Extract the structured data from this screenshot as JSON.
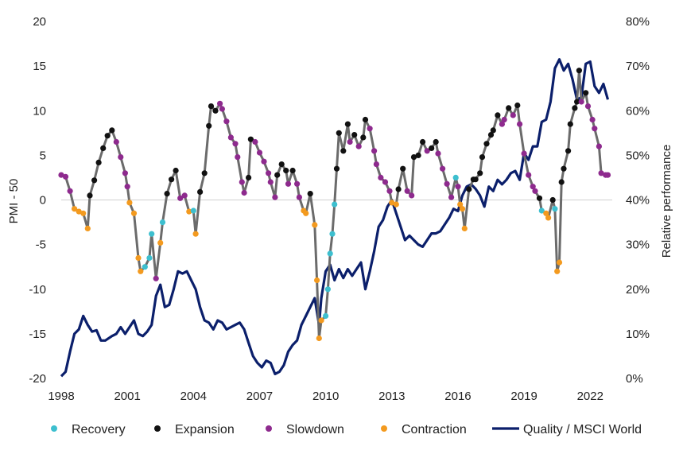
{
  "chart_data": {
    "type": "line",
    "title": "",
    "xlabel": "",
    "ylabel_left": "PMI - 50",
    "ylabel_right": "Relative performance",
    "ylim_left": [
      -20,
      20
    ],
    "ylim_right": [
      0,
      80
    ],
    "xlim": [
      1998,
      2023
    ],
    "x_ticks": [
      "1998",
      "2001",
      "2004",
      "2007",
      "2010",
      "2013",
      "2016",
      "2019",
      "2022"
    ],
    "y_left_ticks": [
      "20",
      "15",
      "10",
      "5",
      "0",
      "-5",
      "-10",
      "-15",
      "-20"
    ],
    "y_right_ticks": [
      "80%",
      "70%",
      "60%",
      "50%",
      "40%",
      "30%",
      "20%",
      "10%",
      "0%"
    ],
    "zero_line": true,
    "grid": false,
    "legend_position": "bottom",
    "colors": {
      "recovery": "#3dbfcf",
      "expansion": "#111111",
      "slowdown": "#8e2a8e",
      "contraction": "#f39a1f",
      "pmi_line": "#6b6b6b",
      "quality_line": "#0b1f6b",
      "zero_line": "#d0d0d0"
    },
    "legend": [
      {
        "key": "recovery",
        "label": "Recovery",
        "kind": "dot"
      },
      {
        "key": "expansion",
        "label": "Expansion",
        "kind": "dot"
      },
      {
        "key": "slowdown",
        "label": "Slowdown",
        "kind": "dot"
      },
      {
        "key": "contraction",
        "label": "Contraction",
        "kind": "dot"
      },
      {
        "key": "quality",
        "label": "Quality / MSCI World",
        "kind": "line"
      }
    ],
    "pmi_series": {
      "axis": "left",
      "points": [
        [
          1998.0,
          2.8,
          "S"
        ],
        [
          1998.2,
          2.6,
          "S"
        ],
        [
          1998.4,
          1.0,
          "S"
        ],
        [
          1998.6,
          -1.0,
          "C"
        ],
        [
          1998.8,
          -1.3,
          "C"
        ],
        [
          1999.0,
          -1.5,
          "C"
        ],
        [
          1999.2,
          -3.2,
          "C"
        ],
        [
          1999.3,
          0.5,
          "E"
        ],
        [
          1999.5,
          2.2,
          "E"
        ],
        [
          1999.7,
          4.2,
          "E"
        ],
        [
          1999.9,
          5.8,
          "E"
        ],
        [
          2000.1,
          7.2,
          "E"
        ],
        [
          2000.3,
          7.8,
          "E"
        ],
        [
          2000.5,
          6.5,
          "S"
        ],
        [
          2000.7,
          4.8,
          "S"
        ],
        [
          2000.9,
          3.0,
          "S"
        ],
        [
          2001.0,
          1.5,
          "S"
        ],
        [
          2001.1,
          -0.3,
          "C"
        ],
        [
          2001.3,
          -1.5,
          "C"
        ],
        [
          2001.5,
          -6.5,
          "C"
        ],
        [
          2001.6,
          -8.0,
          "C"
        ],
        [
          2001.8,
          -7.5,
          "R"
        ],
        [
          2002.0,
          -6.5,
          "R"
        ],
        [
          2002.1,
          -3.8,
          "R"
        ],
        [
          2002.3,
          -8.8,
          "S"
        ],
        [
          2002.5,
          -4.8,
          "C"
        ],
        [
          2002.6,
          -2.5,
          "R"
        ],
        [
          2002.8,
          0.7,
          "E"
        ],
        [
          2003.0,
          2.3,
          "E"
        ],
        [
          2003.2,
          3.3,
          "E"
        ],
        [
          2003.4,
          0.2,
          "S"
        ],
        [
          2003.6,
          0.5,
          "S"
        ],
        [
          2003.8,
          -1.3,
          "C"
        ],
        [
          2004.0,
          -1.2,
          "R"
        ],
        [
          2004.1,
          -3.8,
          "C"
        ],
        [
          2004.3,
          0.9,
          "E"
        ],
        [
          2004.5,
          3.0,
          "E"
        ],
        [
          2004.7,
          8.3,
          "E"
        ],
        [
          2004.8,
          10.5,
          "E"
        ],
        [
          2005.0,
          10.0,
          "E"
        ],
        [
          2005.2,
          10.8,
          "S"
        ],
        [
          2005.3,
          10.2,
          "S"
        ],
        [
          2005.5,
          8.8,
          "S"
        ],
        [
          2005.7,
          7.0,
          "S"
        ],
        [
          2005.9,
          6.3,
          "S"
        ],
        [
          2006.0,
          4.8,
          "S"
        ],
        [
          2006.2,
          2.0,
          "S"
        ],
        [
          2006.3,
          0.8,
          "S"
        ],
        [
          2006.5,
          2.5,
          "E"
        ],
        [
          2006.6,
          6.8,
          "E"
        ],
        [
          2006.8,
          6.5,
          "S"
        ],
        [
          2007.0,
          5.3,
          "S"
        ],
        [
          2007.2,
          4.3,
          "S"
        ],
        [
          2007.4,
          3.0,
          "S"
        ],
        [
          2007.5,
          2.0,
          "S"
        ],
        [
          2007.7,
          0.3,
          "S"
        ],
        [
          2007.8,
          2.8,
          "E"
        ],
        [
          2008.0,
          4.0,
          "E"
        ],
        [
          2008.2,
          3.3,
          "E"
        ],
        [
          2008.3,
          1.8,
          "S"
        ],
        [
          2008.5,
          3.3,
          "E"
        ],
        [
          2008.7,
          1.8,
          "S"
        ],
        [
          2008.8,
          0.3,
          "S"
        ],
        [
          2009.0,
          -1.2,
          "C"
        ],
        [
          2009.1,
          -1.5,
          "C"
        ],
        [
          2009.3,
          0.7,
          "E"
        ],
        [
          2009.5,
          -2.8,
          "C"
        ],
        [
          2009.6,
          -9.0,
          "C"
        ],
        [
          2009.7,
          -15.5,
          "C"
        ],
        [
          2009.8,
          -13.5,
          "C"
        ],
        [
          2010.0,
          -13.0,
          "R"
        ],
        [
          2010.1,
          -10.0,
          "R"
        ],
        [
          2010.2,
          -6.0,
          "R"
        ],
        [
          2010.3,
          -3.8,
          "R"
        ],
        [
          2010.4,
          -0.5,
          "R"
        ],
        [
          2010.5,
          3.5,
          "E"
        ],
        [
          2010.6,
          7.5,
          "E"
        ],
        [
          2010.8,
          5.5,
          "E"
        ],
        [
          2011.0,
          8.5,
          "E"
        ],
        [
          2011.1,
          6.5,
          "S"
        ],
        [
          2011.3,
          7.3,
          "E"
        ],
        [
          2011.5,
          6.0,
          "S"
        ],
        [
          2011.7,
          7.0,
          "E"
        ],
        [
          2011.8,
          9.0,
          "E"
        ],
        [
          2012.0,
          8.0,
          "S"
        ],
        [
          2012.2,
          5.5,
          "S"
        ],
        [
          2012.3,
          4.0,
          "S"
        ],
        [
          2012.5,
          2.5,
          "S"
        ],
        [
          2012.7,
          2.0,
          "S"
        ],
        [
          2012.9,
          1.0,
          "S"
        ],
        [
          2013.0,
          -0.3,
          "C"
        ],
        [
          2013.2,
          -0.5,
          "C"
        ],
        [
          2013.3,
          1.2,
          "E"
        ],
        [
          2013.5,
          3.5,
          "E"
        ],
        [
          2013.7,
          1.0,
          "S"
        ],
        [
          2013.9,
          0.5,
          "S"
        ],
        [
          2014.0,
          4.8,
          "E"
        ],
        [
          2014.2,
          5.0,
          "E"
        ],
        [
          2014.4,
          6.5,
          "E"
        ],
        [
          2014.6,
          5.5,
          "S"
        ],
        [
          2014.8,
          5.8,
          "E"
        ],
        [
          2015.0,
          6.5,
          "E"
        ],
        [
          2015.1,
          5.2,
          "S"
        ],
        [
          2015.3,
          3.5,
          "S"
        ],
        [
          2015.5,
          1.8,
          "S"
        ],
        [
          2015.7,
          0.3,
          "S"
        ],
        [
          2015.9,
          2.5,
          "R"
        ],
        [
          2016.0,
          1.5,
          "S"
        ],
        [
          2016.1,
          -0.5,
          "C"
        ],
        [
          2016.2,
          -1.0,
          "C"
        ],
        [
          2016.3,
          -3.2,
          "C"
        ],
        [
          2016.5,
          1.2,
          "E"
        ],
        [
          2016.7,
          2.3,
          "E"
        ],
        [
          2016.8,
          2.3,
          "E"
        ],
        [
          2017.0,
          3.0,
          "E"
        ],
        [
          2017.1,
          4.8,
          "E"
        ],
        [
          2017.3,
          6.3,
          "E"
        ],
        [
          2017.5,
          7.3,
          "E"
        ],
        [
          2017.6,
          7.8,
          "E"
        ],
        [
          2017.8,
          9.5,
          "E"
        ],
        [
          2018.0,
          8.5,
          "S"
        ],
        [
          2018.1,
          9.0,
          "S"
        ],
        [
          2018.3,
          10.3,
          "E"
        ],
        [
          2018.5,
          9.5,
          "S"
        ],
        [
          2018.7,
          10.6,
          "E"
        ],
        [
          2018.8,
          8.5,
          "S"
        ],
        [
          2019.0,
          5.2,
          "S"
        ],
        [
          2019.2,
          2.8,
          "S"
        ],
        [
          2019.4,
          1.5,
          "S"
        ],
        [
          2019.5,
          1.0,
          "S"
        ],
        [
          2019.7,
          0.2,
          "E"
        ],
        [
          2019.8,
          -1.2,
          "R"
        ],
        [
          2020.0,
          -1.5,
          "C"
        ],
        [
          2020.1,
          -2.0,
          "C"
        ],
        [
          2020.3,
          0.0,
          "E"
        ],
        [
          2020.4,
          -1.0,
          "R"
        ],
        [
          2020.5,
          -8.0,
          "C"
        ],
        [
          2020.6,
          -7.0,
          "C"
        ],
        [
          2020.7,
          2.0,
          "E"
        ],
        [
          2020.8,
          3.5,
          "E"
        ],
        [
          2021.0,
          5.5,
          "E"
        ],
        [
          2021.1,
          8.5,
          "E"
        ],
        [
          2021.3,
          10.3,
          "E"
        ],
        [
          2021.4,
          11.0,
          "E"
        ],
        [
          2021.5,
          14.5,
          "E"
        ],
        [
          2021.6,
          11.0,
          "S"
        ],
        [
          2021.8,
          12.0,
          "E"
        ],
        [
          2021.9,
          10.5,
          "S"
        ],
        [
          2022.1,
          9.0,
          "S"
        ],
        [
          2022.2,
          8.0,
          "S"
        ],
        [
          2022.4,
          6.0,
          "S"
        ],
        [
          2022.5,
          3.0,
          "S"
        ],
        [
          2022.7,
          2.8,
          "S"
        ],
        [
          2022.8,
          2.8,
          "S"
        ]
      ]
    },
    "quality_series": {
      "name": "Quality / MSCI World",
      "axis": "right",
      "points": [
        [
          1998.0,
          0.5
        ],
        [
          1998.2,
          1.5
        ],
        [
          1998.4,
          6.0
        ],
        [
          1998.6,
          10.0
        ],
        [
          1998.8,
          11.0
        ],
        [
          1999.0,
          14.0
        ],
        [
          1999.2,
          12.0
        ],
        [
          1999.4,
          10.5
        ],
        [
          1999.6,
          10.8
        ],
        [
          1999.8,
          8.5
        ],
        [
          2000.0,
          8.5
        ],
        [
          2000.3,
          9.5
        ],
        [
          2000.5,
          10.0
        ],
        [
          2000.7,
          11.5
        ],
        [
          2000.9,
          10.0
        ],
        [
          2001.1,
          11.5
        ],
        [
          2001.3,
          13.0
        ],
        [
          2001.5,
          10.0
        ],
        [
          2001.7,
          9.5
        ],
        [
          2001.9,
          10.5
        ],
        [
          2002.1,
          12.0
        ],
        [
          2002.3,
          18.5
        ],
        [
          2002.5,
          21.0
        ],
        [
          2002.7,
          16.0
        ],
        [
          2002.9,
          16.5
        ],
        [
          2003.1,
          20.0
        ],
        [
          2003.3,
          24.0
        ],
        [
          2003.5,
          23.5
        ],
        [
          2003.7,
          24.0
        ],
        [
          2003.9,
          22.0
        ],
        [
          2004.1,
          20.0
        ],
        [
          2004.3,
          16.0
        ],
        [
          2004.5,
          13.0
        ],
        [
          2004.7,
          12.5
        ],
        [
          2004.9,
          11.0
        ],
        [
          2005.1,
          13.0
        ],
        [
          2005.3,
          12.5
        ],
        [
          2005.5,
          11.0
        ],
        [
          2005.7,
          11.5
        ],
        [
          2005.9,
          12.0
        ],
        [
          2006.1,
          12.5
        ],
        [
          2006.3,
          11.0
        ],
        [
          2006.5,
          8.0
        ],
        [
          2006.7,
          5.0
        ],
        [
          2006.9,
          3.5
        ],
        [
          2007.1,
          2.5
        ],
        [
          2007.3,
          4.0
        ],
        [
          2007.5,
          3.5
        ],
        [
          2007.7,
          1.0
        ],
        [
          2007.9,
          1.5
        ],
        [
          2008.1,
          3.0
        ],
        [
          2008.3,
          6.0
        ],
        [
          2008.5,
          7.5
        ],
        [
          2008.7,
          8.5
        ],
        [
          2008.9,
          12.0
        ],
        [
          2009.1,
          14.0
        ],
        [
          2009.3,
          16.0
        ],
        [
          2009.5,
          18.0
        ],
        [
          2009.7,
          12.0
        ],
        [
          2009.8,
          18.0
        ],
        [
          2010.0,
          24.0
        ],
        [
          2010.2,
          25.5
        ],
        [
          2010.4,
          22.0
        ],
        [
          2010.6,
          24.5
        ],
        [
          2010.8,
          22.5
        ],
        [
          2011.0,
          24.5
        ],
        [
          2011.2,
          23.0
        ],
        [
          2011.4,
          24.5
        ],
        [
          2011.6,
          26.0
        ],
        [
          2011.8,
          20.0
        ],
        [
          2012.0,
          24.0
        ],
        [
          2012.2,
          28.5
        ],
        [
          2012.4,
          34.0
        ],
        [
          2012.6,
          35.5
        ],
        [
          2012.8,
          38.5
        ],
        [
          2013.0,
          40.0
        ],
        [
          2013.2,
          37.0
        ],
        [
          2013.4,
          34.0
        ],
        [
          2013.6,
          31.0
        ],
        [
          2013.8,
          32.0
        ],
        [
          2014.0,
          31.0
        ],
        [
          2014.2,
          30.0
        ],
        [
          2014.4,
          29.5
        ],
        [
          2014.6,
          31.0
        ],
        [
          2014.8,
          32.5
        ],
        [
          2015.0,
          32.5
        ],
        [
          2015.2,
          33.0
        ],
        [
          2015.4,
          34.5
        ],
        [
          2015.6,
          36.0
        ],
        [
          2015.8,
          38.0
        ],
        [
          2016.0,
          37.5
        ],
        [
          2016.2,
          41.0
        ],
        [
          2016.4,
          43.0
        ],
        [
          2016.6,
          43.5
        ],
        [
          2016.8,
          42.5
        ],
        [
          2017.0,
          41.0
        ],
        [
          2017.2,
          38.5
        ],
        [
          2017.4,
          43.0
        ],
        [
          2017.6,
          42.0
        ],
        [
          2017.8,
          44.5
        ],
        [
          2018.0,
          43.5
        ],
        [
          2018.2,
          44.5
        ],
        [
          2018.4,
          46.0
        ],
        [
          2018.6,
          46.5
        ],
        [
          2018.8,
          44.5
        ],
        [
          2019.0,
          50.5
        ],
        [
          2019.2,
          49.0
        ],
        [
          2019.4,
          52.0
        ],
        [
          2019.6,
          52.0
        ],
        [
          2019.8,
          57.5
        ],
        [
          2020.0,
          58.0
        ],
        [
          2020.2,
          62.0
        ],
        [
          2020.4,
          69.5
        ],
        [
          2020.6,
          71.5
        ],
        [
          2020.8,
          69.0
        ],
        [
          2021.0,
          70.5
        ],
        [
          2021.2,
          67.0
        ],
        [
          2021.4,
          62.5
        ],
        [
          2021.6,
          63.0
        ],
        [
          2021.8,
          70.5
        ],
        [
          2022.0,
          71.0
        ],
        [
          2022.2,
          65.5
        ],
        [
          2022.4,
          64.0
        ],
        [
          2022.6,
          66.0
        ],
        [
          2022.8,
          62.5
        ]
      ]
    }
  }
}
